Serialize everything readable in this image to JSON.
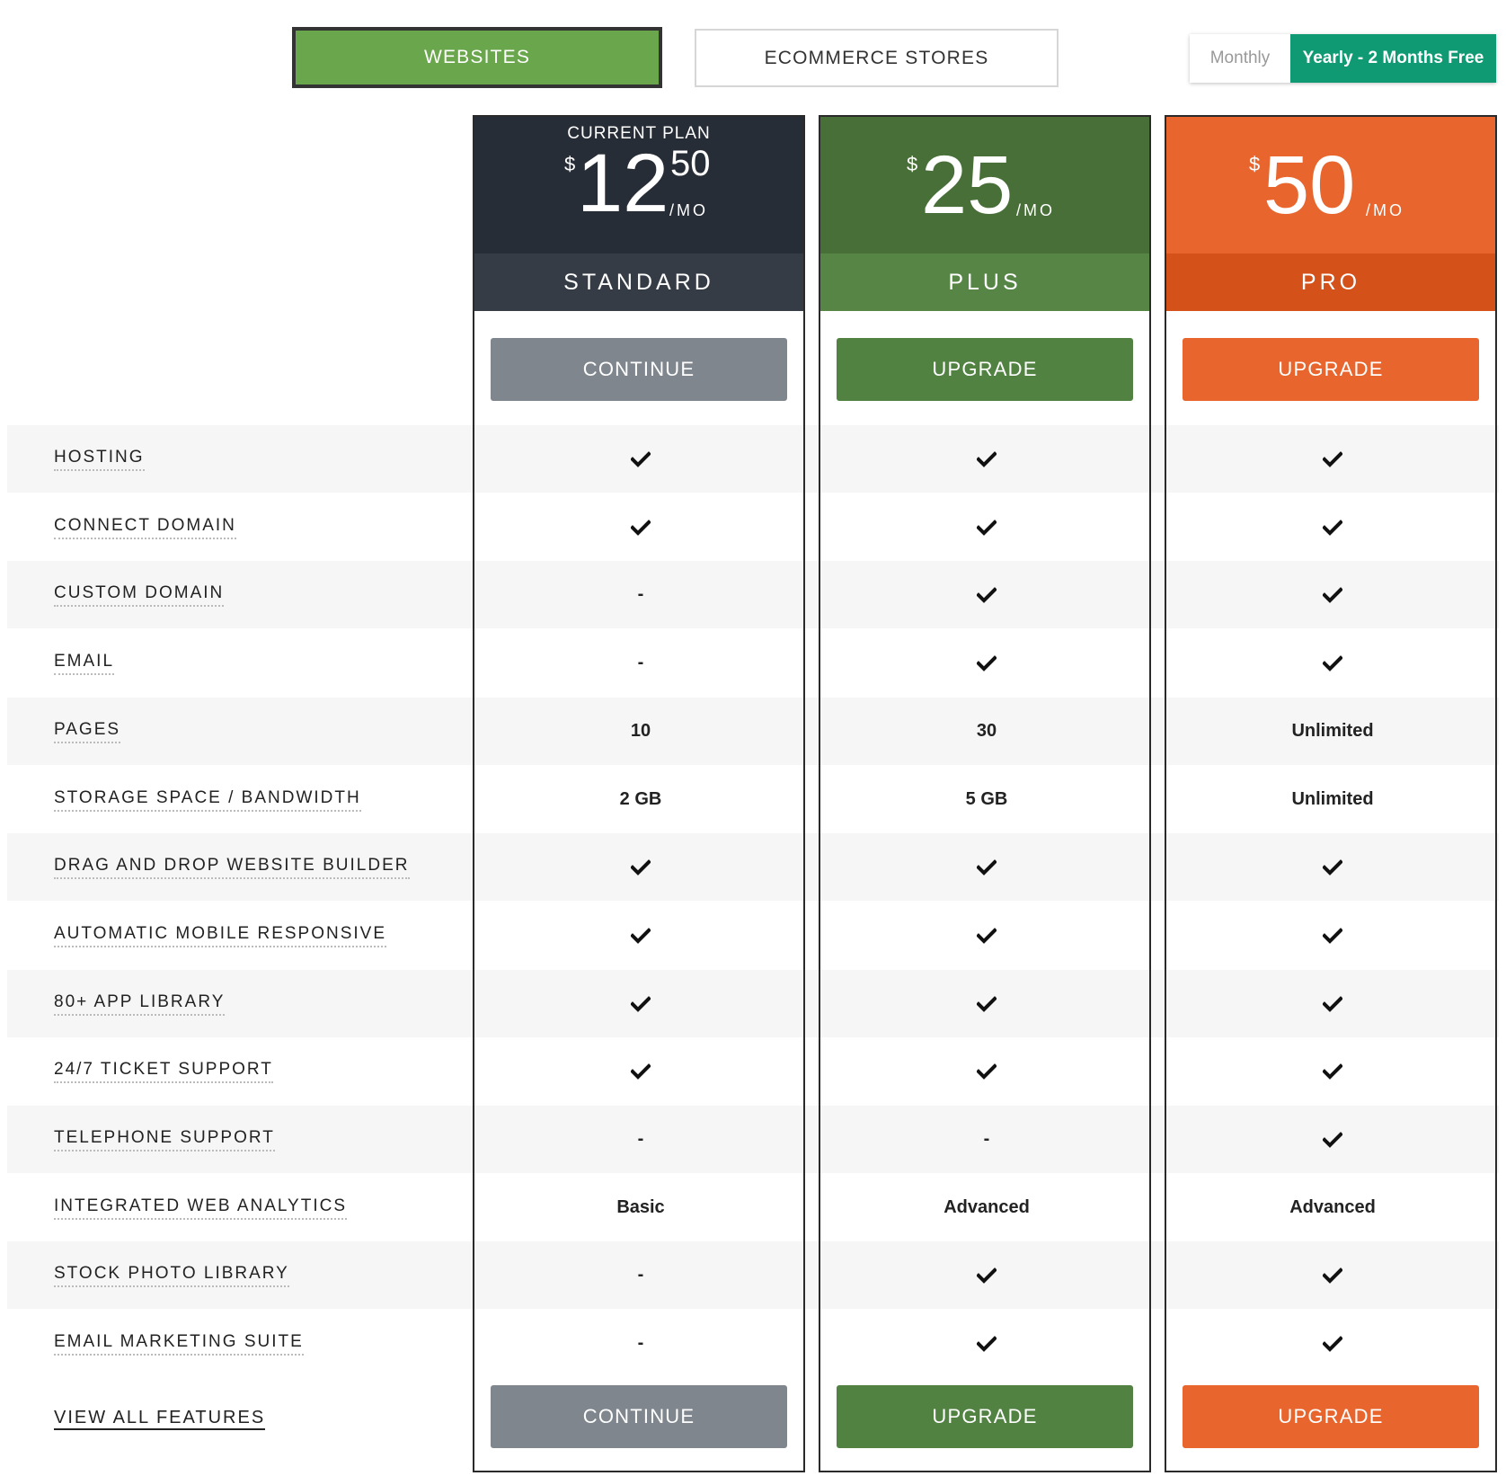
{
  "tabs": {
    "websites": "WEBSITES",
    "ecommerce": "ECOMMERCE STORES"
  },
  "billing": {
    "monthly": "Monthly",
    "yearly": "Yearly - 2 Months Free"
  },
  "plans": [
    {
      "current_label": "CURRENT PLAN",
      "currency": "$",
      "amount": "12",
      "cents": "50",
      "per": "/MO",
      "name": "STANDARD",
      "button": "CONTINUE"
    },
    {
      "current_label": "",
      "currency": "$",
      "amount": "25",
      "cents": "",
      "per": "/MO",
      "name": "PLUS",
      "button": "UPGRADE"
    },
    {
      "current_label": "",
      "currency": "$",
      "amount": "50",
      "cents": "",
      "per": "/MO",
      "name": "PRO",
      "button": "UPGRADE"
    }
  ],
  "features": [
    {
      "label": "HOSTING",
      "values": [
        "check",
        "check",
        "check"
      ]
    },
    {
      "label": "CONNECT DOMAIN",
      "values": [
        "check",
        "check",
        "check"
      ]
    },
    {
      "label": "CUSTOM DOMAIN",
      "values": [
        "-",
        "check",
        "check"
      ]
    },
    {
      "label": "EMAIL",
      "values": [
        "-",
        "check",
        "check"
      ]
    },
    {
      "label": "PAGES",
      "values": [
        "10",
        "30",
        "Unlimited"
      ]
    },
    {
      "label": "STORAGE SPACE / BANDWIDTH",
      "values": [
        "2 GB",
        "5 GB",
        "Unlimited"
      ]
    },
    {
      "label": "DRAG AND DROP WEBSITE BUILDER",
      "values": [
        "check",
        "check",
        "check"
      ]
    },
    {
      "label": "AUTOMATIC MOBILE RESPONSIVE",
      "values": [
        "check",
        "check",
        "check"
      ]
    },
    {
      "label": "80+ APP LIBRARY",
      "values": [
        "check",
        "check",
        "check"
      ]
    },
    {
      "label": "24/7 TICKET SUPPORT",
      "values": [
        "check",
        "check",
        "check"
      ]
    },
    {
      "label": "TELEPHONE SUPPORT",
      "values": [
        "-",
        "-",
        "check"
      ]
    },
    {
      "label": "INTEGRATED WEB ANALYTICS",
      "values": [
        "Basic",
        "Advanced",
        "Advanced"
      ]
    },
    {
      "label": "STOCK PHOTO LIBRARY",
      "values": [
        "-",
        "check",
        "check"
      ]
    },
    {
      "label": "EMAIL MARKETING SUITE",
      "values": [
        "-",
        "check",
        "check"
      ]
    }
  ],
  "view_all": "VIEW ALL FEATURES",
  "colors": {
    "websites_tab": "#6aa64b",
    "yearly_toggle": "#0f9a74",
    "standard": "#272d37",
    "plus": "#476f37",
    "pro": "#e8662e"
  }
}
